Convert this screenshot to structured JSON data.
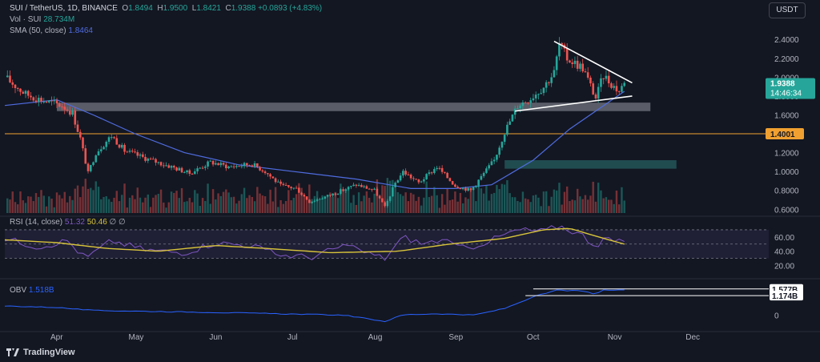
{
  "header": {
    "symbol": "SUI / TetherUS, 1D, BINANCE",
    "ohlc": [
      {
        "k": "O",
        "v": "1.8494"
      },
      {
        "k": "H",
        "v": "1.9500"
      },
      {
        "k": "L",
        "v": "1.8421"
      },
      {
        "k": "C",
        "v": "1.9388"
      }
    ],
    "change": "+0.0893 (+4.83%)",
    "volume_label": "Vol · SUI",
    "volume_value": "28.734M",
    "sma_label": "SMA (50, close)",
    "sma_value": "1.8464"
  },
  "currency_button": "USDT",
  "brand": "TradingView",
  "chart_data": [
    {
      "type": "candlestick",
      "title": "SUI / TetherUS, 1D, BINANCE",
      "x_tick_labels": [
        "Apr",
        "May",
        "Jun",
        "Jul",
        "Aug",
        "Sep",
        "Oct",
        "Nov",
        "Dec"
      ],
      "x_ticks": [
        "2024-04-01",
        "2024-05-01",
        "2024-06-01",
        "2024-07-01",
        "2024-08-01",
        "2024-09-01",
        "2024-10-01",
        "2024-11-01",
        "2024-12-01"
      ],
      "x_range": [
        "2024-03-12",
        "2024-12-28"
      ],
      "y_ticks": [
        0.6,
        0.8,
        1.0,
        1.2,
        1.4,
        1.6,
        1.8,
        2.0,
        2.2,
        2.4
      ],
      "y_tick_labels": [
        "0.6000",
        "0.8000",
        "1.0000",
        "1.2000",
        "1.4000",
        "1.6000",
        "1.8000",
        "2.0000",
        "2.2000",
        "2.4000"
      ],
      "ylim": [
        0.56,
        2.58
      ],
      "last_price": 1.9388,
      "last_price_label": "1.9388",
      "countdown": "14:46:34",
      "price_path": [
        [
          "2024-03-12",
          2.0
        ],
        [
          "2024-03-20",
          1.82
        ],
        [
          "2024-03-27",
          1.75
        ],
        [
          "2024-04-03",
          1.7
        ],
        [
          "2024-04-07",
          1.62
        ],
        [
          "2024-04-10",
          1.35
        ],
        [
          "2024-04-13",
          0.98
        ],
        [
          "2024-04-16",
          1.2
        ],
        [
          "2024-04-22",
          1.38
        ],
        [
          "2024-04-27",
          1.22
        ],
        [
          "2024-05-05",
          1.14
        ],
        [
          "2024-05-15",
          1.05
        ],
        [
          "2024-05-22",
          0.98
        ],
        [
          "2024-05-30",
          1.1
        ],
        [
          "2024-06-06",
          1.05
        ],
        [
          "2024-06-15",
          1.08
        ],
        [
          "2024-06-20",
          1.0
        ],
        [
          "2024-06-26",
          0.85
        ],
        [
          "2024-07-02",
          0.82
        ],
        [
          "2024-07-07",
          0.68
        ],
        [
          "2024-07-15",
          0.75
        ],
        [
          "2024-07-25",
          0.86
        ],
        [
          "2024-08-01",
          0.8
        ],
        [
          "2024-08-05",
          0.62
        ],
        [
          "2024-08-09",
          0.88
        ],
        [
          "2024-08-12",
          1.0
        ],
        [
          "2024-08-18",
          0.88
        ],
        [
          "2024-08-25",
          1.05
        ],
        [
          "2024-09-01",
          0.85
        ],
        [
          "2024-09-07",
          0.8
        ],
        [
          "2024-09-12",
          0.98
        ],
        [
          "2024-09-16",
          1.12
        ],
        [
          "2024-09-20",
          1.42
        ],
        [
          "2024-09-25",
          1.7
        ],
        [
          "2024-09-30",
          1.78
        ],
        [
          "2024-10-05",
          1.9
        ],
        [
          "2024-10-09",
          2.05
        ],
        [
          "2024-10-11",
          2.35
        ],
        [
          "2024-10-14",
          2.2
        ],
        [
          "2024-10-20",
          2.1
        ],
        [
          "2024-10-25",
          1.78
        ],
        [
          "2024-10-28",
          2.02
        ],
        [
          "2024-11-01",
          1.9
        ],
        [
          "2024-11-03",
          1.85
        ],
        [
          "2024-11-05",
          1.94
        ]
      ],
      "sma": {
        "label": "SMA (50, close)",
        "value": 1.8464,
        "color": "#4f6ce0",
        "path": [
          [
            "2024-03-12",
            1.7
          ],
          [
            "2024-04-01",
            1.76
          ],
          [
            "2024-04-15",
            1.6
          ],
          [
            "2024-05-01",
            1.4
          ],
          [
            "2024-05-20",
            1.2
          ],
          [
            "2024-06-10",
            1.07
          ],
          [
            "2024-07-01",
            1.0
          ],
          [
            "2024-07-25",
            0.92
          ],
          [
            "2024-08-15",
            0.82
          ],
          [
            "2024-09-01",
            0.82
          ],
          [
            "2024-09-15",
            0.86
          ],
          [
            "2024-10-01",
            1.12
          ],
          [
            "2024-10-15",
            1.45
          ],
          [
            "2024-11-05",
            1.85
          ]
        ]
      },
      "horizontal_line": {
        "value": 1.4001,
        "label": "1.4001",
        "color": "#f0a030"
      },
      "zones": [
        {
          "x": [
            "2024-04-01",
            "2024-11-15"
          ],
          "y": [
            1.64,
            1.73
          ],
          "color": "#9598a1"
        },
        {
          "x": [
            "2024-09-20",
            "2024-11-25"
          ],
          "y": [
            1.03,
            1.12
          ],
          "color": "#2a6f6f"
        }
      ],
      "trendlines": [
        {
          "from": [
            "2024-10-09",
            2.38
          ],
          "to": [
            "2024-11-08",
            1.94
          ]
        },
        {
          "from": [
            "2024-09-24",
            1.64
          ],
          "to": [
            "2024-11-08",
            1.8
          ]
        }
      ],
      "volume": {
        "label": "Vol · SUI",
        "value": "28.734M"
      }
    },
    {
      "type": "line",
      "title": "RSI (14, close)",
      "series": [
        {
          "name": "RSI (14, close)",
          "value": 51.32,
          "color": "#7e57c2",
          "points": [
            [
              "2024-03-12",
              58
            ],
            [
              "2024-03-25",
              46
            ],
            [
              "2024-04-05",
              55
            ],
            [
              "2024-04-12",
              30
            ],
            [
              "2024-04-22",
              55
            ],
            [
              "2024-05-05",
              42
            ],
            [
              "2024-05-20",
              38
            ],
            [
              "2024-06-01",
              52
            ],
            [
              "2024-06-15",
              48
            ],
            [
              "2024-06-25",
              35
            ],
            [
              "2024-07-08",
              32
            ],
            [
              "2024-07-20",
              48
            ],
            [
              "2024-08-05",
              30
            ],
            [
              "2024-08-12",
              60
            ],
            [
              "2024-08-20",
              50
            ],
            [
              "2024-08-26",
              56
            ],
            [
              "2024-09-05",
              43
            ],
            [
              "2024-09-15",
              56
            ],
            [
              "2024-09-25",
              70
            ],
            [
              "2024-10-05",
              68
            ],
            [
              "2024-10-11",
              76
            ],
            [
              "2024-10-20",
              62
            ],
            [
              "2024-10-25",
              47
            ],
            [
              "2024-10-28",
              58
            ],
            [
              "2024-11-05",
              51
            ]
          ]
        },
        {
          "name": "",
          "value": 50.46,
          "color": "#d8c43a",
          "points": [
            [
              "2024-03-12",
              56
            ],
            [
              "2024-04-01",
              52
            ],
            [
              "2024-04-20",
              44
            ],
            [
              "2024-05-10",
              40
            ],
            [
              "2024-06-01",
              48
            ],
            [
              "2024-06-20",
              44
            ],
            [
              "2024-07-15",
              38
            ],
            [
              "2024-08-10",
              40
            ],
            [
              "2024-08-30",
              50
            ],
            [
              "2024-09-20",
              58
            ],
            [
              "2024-10-05",
              70
            ],
            [
              "2024-10-15",
              72
            ],
            [
              "2024-10-28",
              58
            ],
            [
              "2024-11-05",
              50
            ]
          ]
        }
      ],
      "legend_extra": [
        "∅",
        "∅"
      ],
      "y_ticks": [
        20,
        40,
        60
      ],
      "y_tick_labels": [
        "20.00",
        "40.00",
        "60.00"
      ],
      "bands": [
        30,
        50,
        70
      ],
      "ylim": [
        15,
        80
      ]
    },
    {
      "type": "line",
      "title": "OBV",
      "series": [
        {
          "name": "OBV",
          "value": "1.518B",
          "color": "#2962ff",
          "points": [
            [
              "2024-03-12",
              0.55
            ],
            [
              "2024-04-01",
              0.46
            ],
            [
              "2024-04-15",
              0.28
            ],
            [
              "2024-05-01",
              0.24
            ],
            [
              "2024-06-01",
              0.16
            ],
            [
              "2024-07-01",
              0.06
            ],
            [
              "2024-07-20",
              0.0
            ],
            [
              "2024-08-05",
              -0.38
            ],
            [
              "2024-08-12",
              0.02
            ],
            [
              "2024-08-25",
              0.08
            ],
            [
              "2024-09-08",
              0.0
            ],
            [
              "2024-09-20",
              0.4
            ],
            [
              "2024-10-01",
              1.1
            ],
            [
              "2024-10-10",
              1.5
            ],
            [
              "2024-10-20",
              1.45
            ],
            [
              "2024-10-25",
              1.25
            ],
            [
              "2024-10-28",
              1.5
            ],
            [
              "2024-11-05",
              1.52
            ]
          ]
        }
      ],
      "y_ticks": [
        0
      ],
      "y_tick_labels": [
        "0"
      ],
      "markers": [
        {
          "value": 1.577,
          "label": "1.577B"
        },
        {
          "value": 1.174,
          "label": "1.174B"
        }
      ],
      "ylim": [
        -0.8,
        2.0
      ]
    }
  ]
}
